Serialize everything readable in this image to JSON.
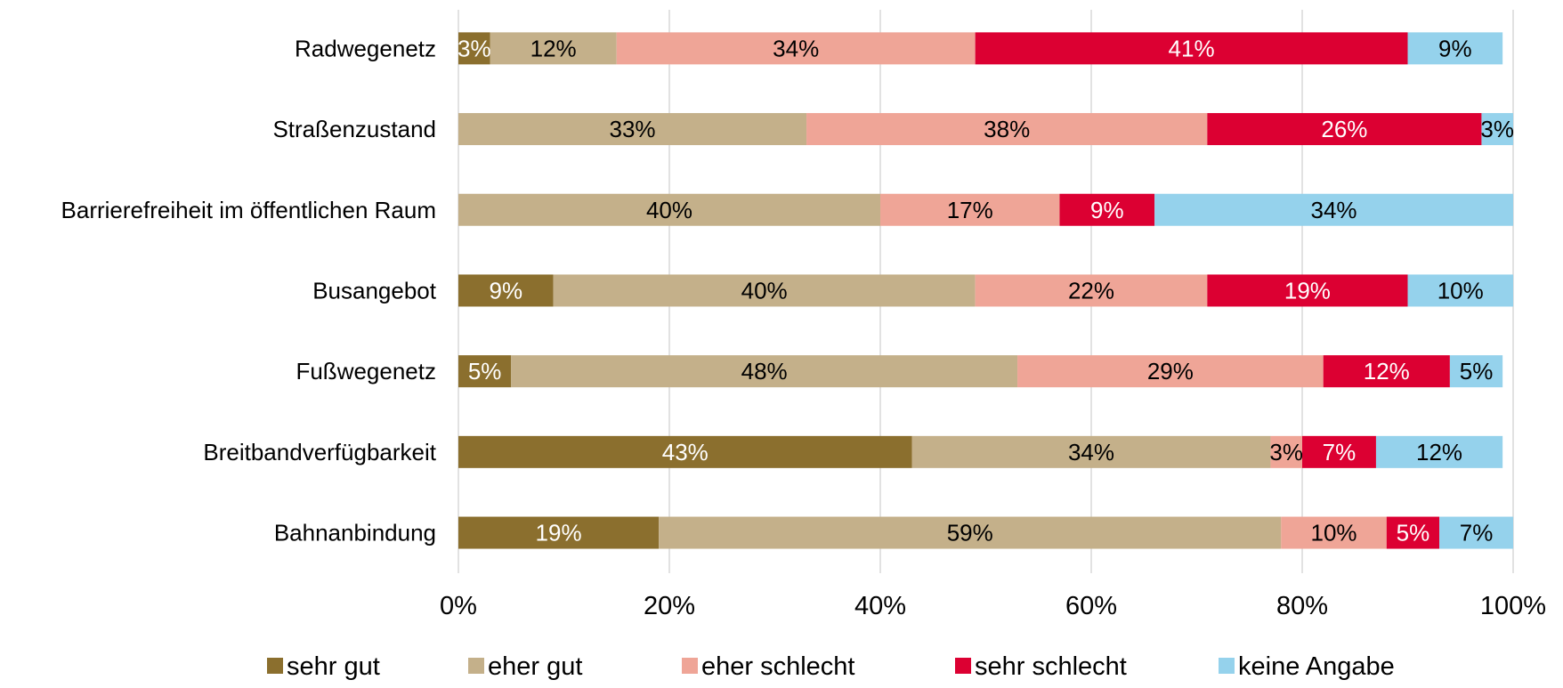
{
  "chart_data": {
    "type": "stacked_bar_horizontal",
    "categories": [
      "Radwegenetz",
      "Straßenzustand",
      "Barrierefreiheit im öffentlichen Raum",
      "Busangebot",
      "Fußwegenetz",
      "Breitbandverfügbarkeit",
      "Bahnanbindung"
    ],
    "series": [
      {
        "name": "sehr gut",
        "color": "#8b6f2e",
        "label_color": "#ffffff",
        "values": [
          3,
          null,
          null,
          9,
          5,
          43,
          19
        ],
        "value_labels": [
          "3%",
          null,
          null,
          "9%",
          "5%",
          "43%",
          "19%"
        ]
      },
      {
        "name": "eher gut",
        "color": "#c4b08a",
        "label_color": "#000000",
        "values": [
          12,
          33,
          40,
          40,
          48,
          34,
          59
        ],
        "value_labels": [
          "12%",
          "33%",
          "40%",
          "40%",
          "48%",
          "34%",
          "59%"
        ]
      },
      {
        "name": "eher schlecht",
        "color": "#efa597",
        "label_color": "#000000",
        "values": [
          34,
          38,
          17,
          22,
          29,
          3,
          10
        ],
        "value_labels": [
          "34%",
          "38%",
          "17%",
          "22%",
          "29%",
          "3%",
          "10%"
        ]
      },
      {
        "name": "sehr schlecht",
        "color": "#dc0032",
        "label_color": "#ffffff",
        "values": [
          41,
          26,
          9,
          19,
          12,
          7,
          5
        ],
        "value_labels": [
          "41%",
          "26%",
          "9%",
          "19%",
          "12%",
          "7%",
          "5%"
        ]
      },
      {
        "name": "keine Angabe",
        "color": "#95d2ec",
        "label_color": "#000000",
        "values": [
          9,
          3,
          34,
          10,
          5,
          12,
          7
        ],
        "value_labels": [
          "9%",
          "3%",
          "34%",
          "10%",
          "5%",
          "12%",
          "7%"
        ]
      }
    ],
    "xlim": [
      0,
      100
    ],
    "xticks": [
      {
        "value": 0,
        "label": "0%"
      },
      {
        "value": 20,
        "label": "20%"
      },
      {
        "value": 40,
        "label": "40%"
      },
      {
        "value": 60,
        "label": "60%"
      },
      {
        "value": 80,
        "label": "80%"
      },
      {
        "value": 100,
        "label": "100%"
      }
    ],
    "grid": true,
    "legend": "bottom"
  }
}
